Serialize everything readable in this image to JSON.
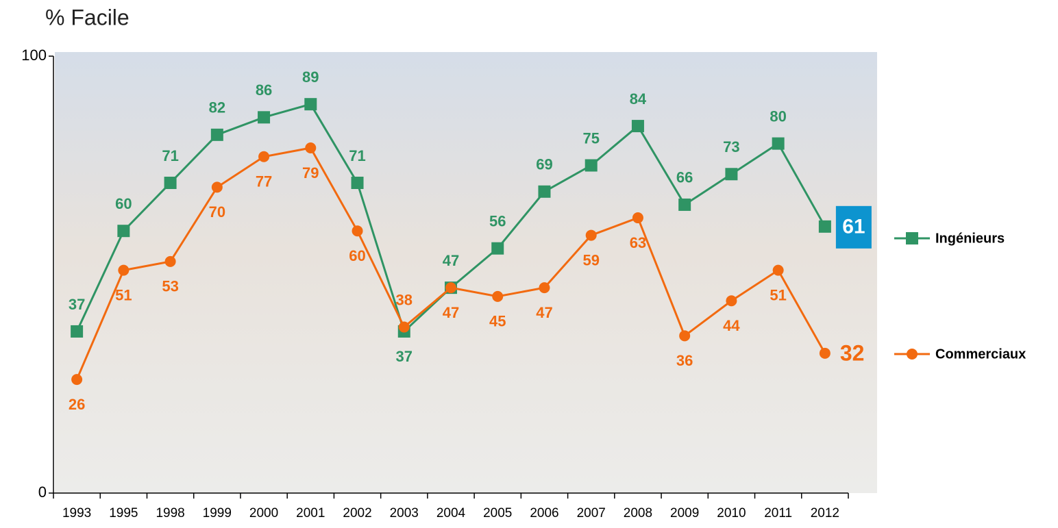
{
  "chart_data": {
    "type": "line",
    "title": "% Facile",
    "categories": [
      "1993",
      "1995",
      "1998",
      "1999",
      "2000",
      "2001",
      "2002",
      "2003",
      "2004",
      "2005",
      "2006",
      "2007",
      "2008",
      "2009",
      "2010",
      "2011",
      "2012"
    ],
    "series": [
      {
        "name": "Ingénieurs",
        "color": "#2f9464",
        "values": [
          37,
          60,
          71,
          82,
          86,
          89,
          71,
          37,
          47,
          56,
          69,
          75,
          84,
          66,
          73,
          80,
          61
        ]
      },
      {
        "name": "Commerciaux",
        "color": "#f26a10",
        "values": [
          26,
          51,
          53,
          70,
          77,
          79,
          60,
          38,
          47,
          45,
          47,
          59,
          63,
          36,
          44,
          51,
          32
        ]
      }
    ],
    "ylim": [
      0,
      100
    ],
    "yticks": [
      0,
      100
    ],
    "grid": false
  }
}
